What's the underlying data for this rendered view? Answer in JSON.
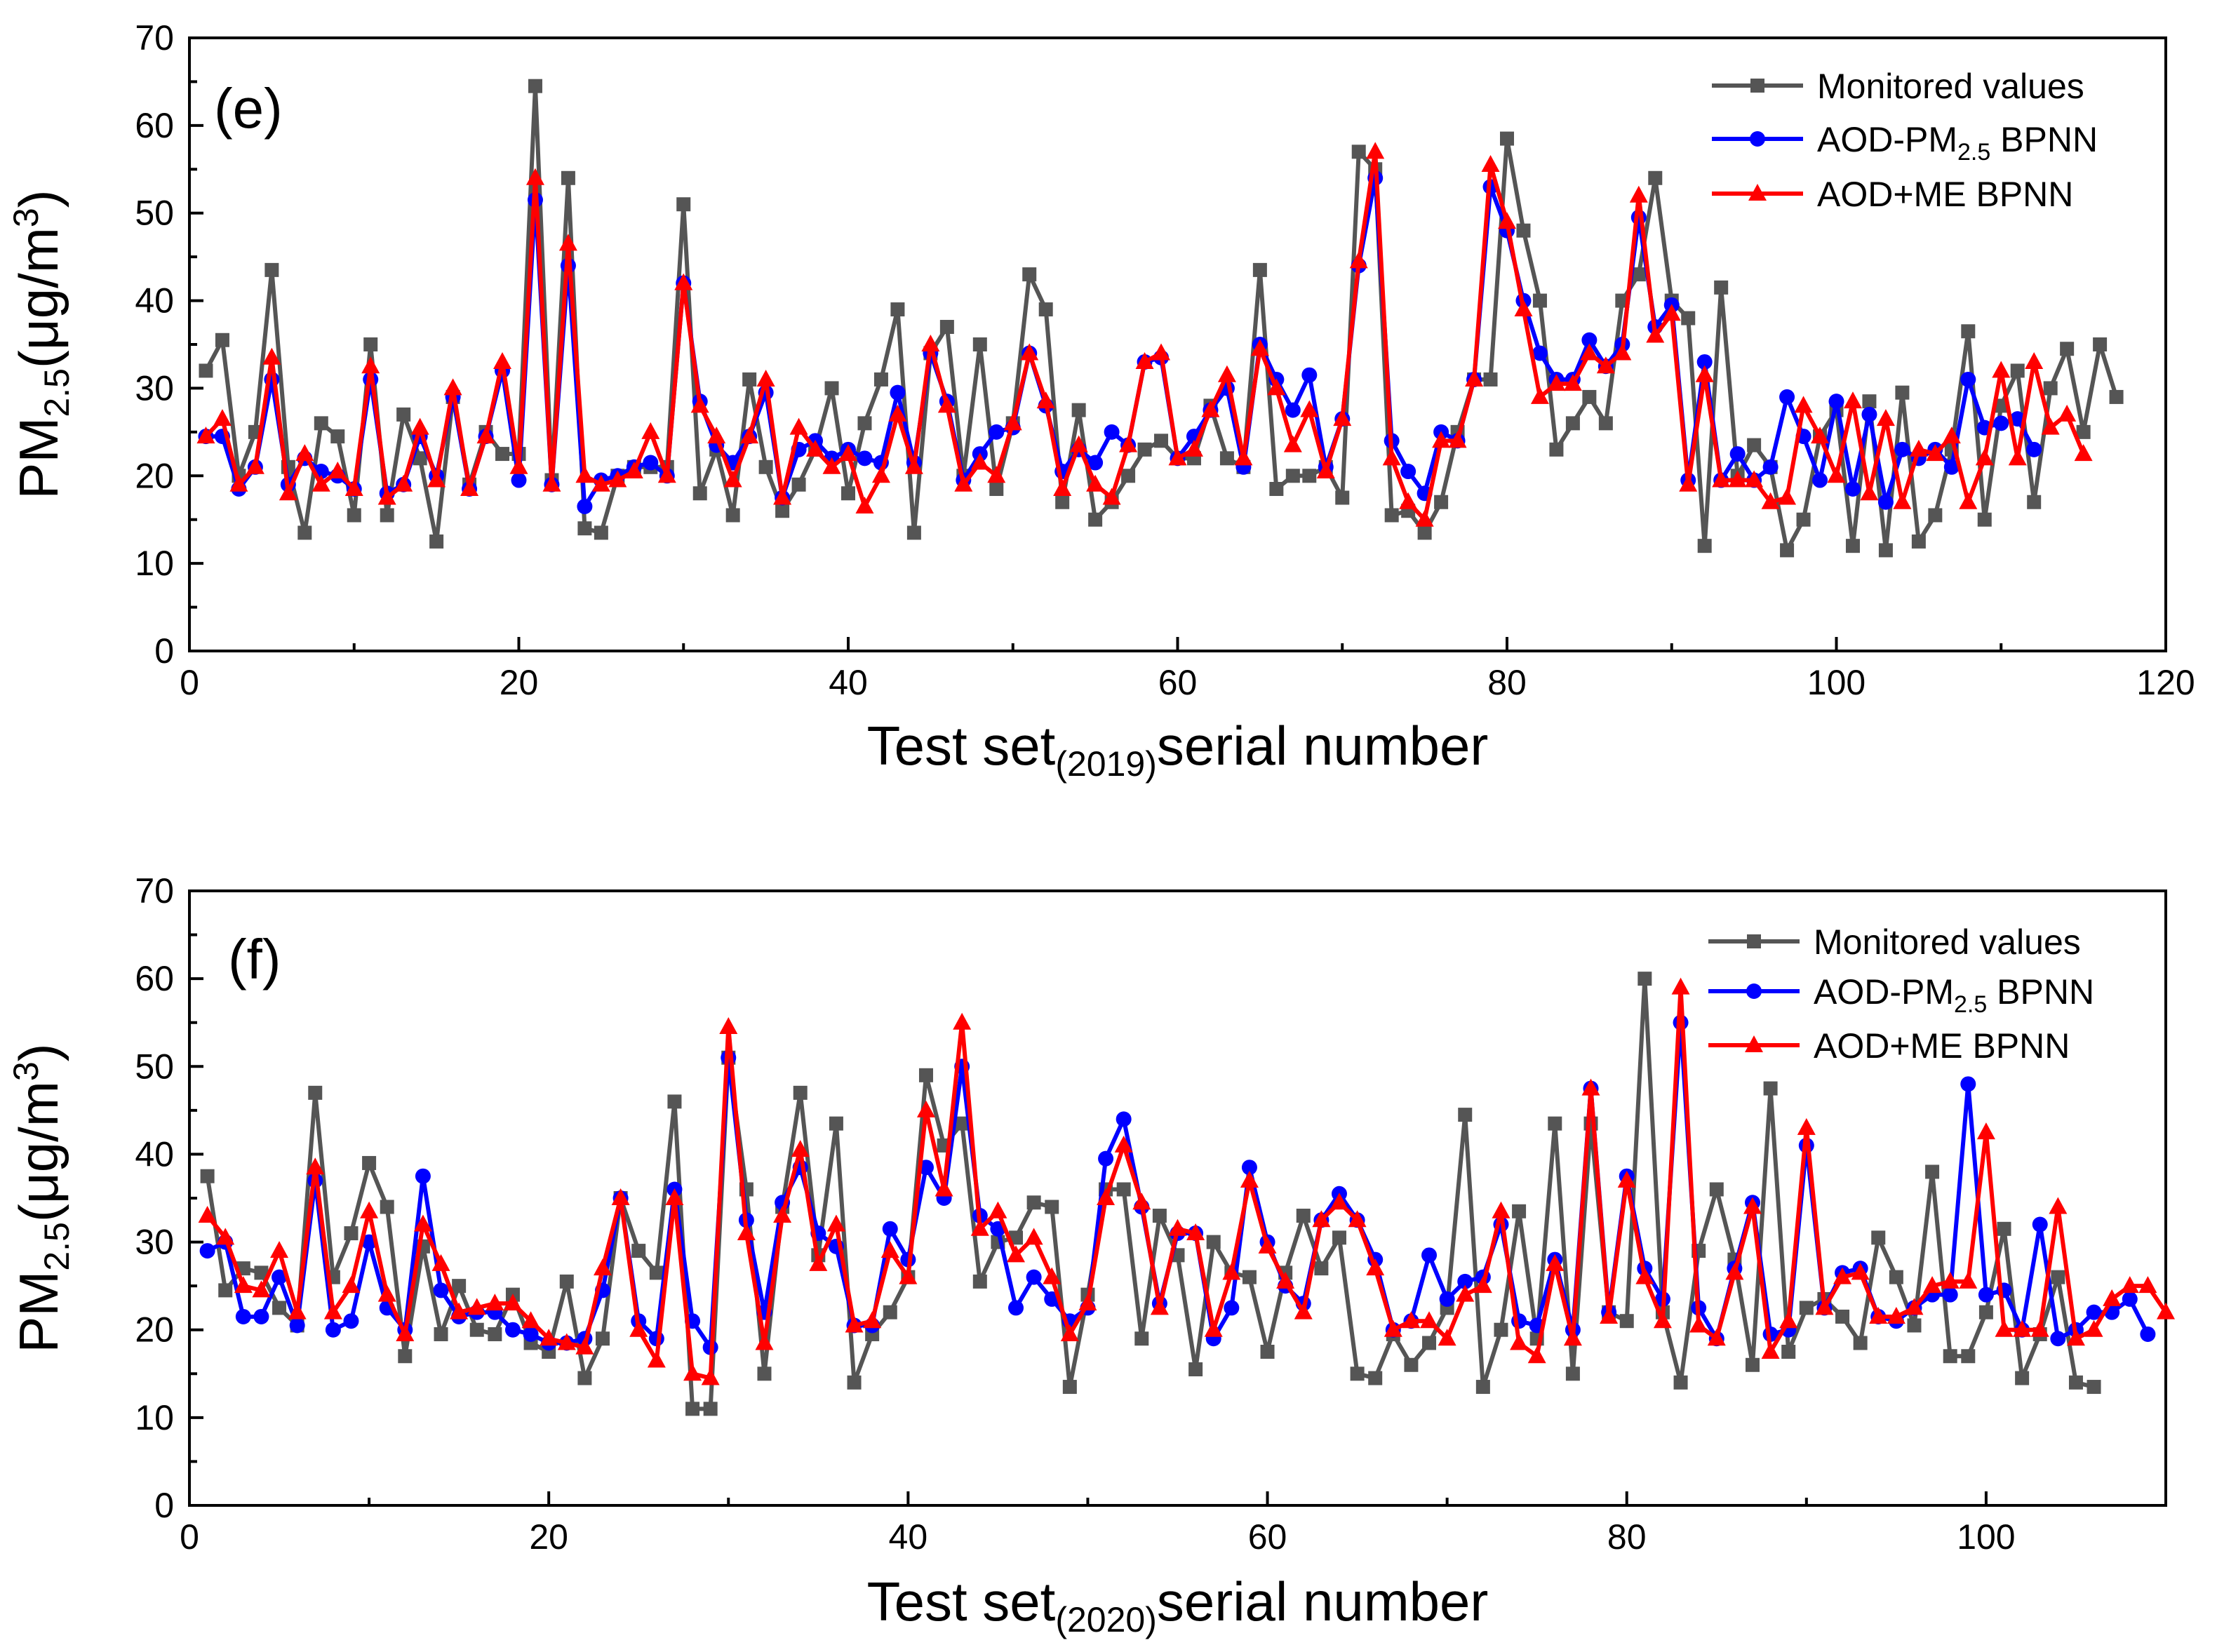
{
  "chart_data": [
    {
      "type": "line",
      "panel_label": "(e)",
      "xlabel": {
        "main": "Test set",
        "sub": "(2019)",
        "rest": "serial number"
      },
      "ylabel": {
        "pm": "PM",
        "pm_sub": "2.5",
        "unit": "(μg/m",
        "unit_sup": "3",
        "close": ")"
      },
      "xlim": [
        0,
        120
      ],
      "ylim": [
        0,
        70
      ],
      "xticks": [
        0,
        20,
        40,
        60,
        80,
        100,
        120
      ],
      "yticks": [
        0,
        10,
        20,
        30,
        40,
        50,
        60,
        70
      ],
      "legend_position": "top-right",
      "series": [
        {
          "name": "Monitored values",
          "legend": {
            "pre": "Monitored values",
            "sub": "",
            "post": ""
          },
          "color": "#555555",
          "marker": "square",
          "values": [
            32,
            35.5,
            20,
            25,
            43.5,
            21,
            13.5,
            26,
            24.5,
            15.5,
            35,
            15.5,
            27,
            22,
            12.5,
            29,
            19,
            25,
            22.5,
            22.5,
            64.5,
            19.5,
            54,
            14,
            13.5,
            20,
            21,
            21,
            21,
            51,
            18,
            23,
            15.5,
            31,
            21,
            16,
            19,
            23,
            30,
            18,
            26,
            31,
            39,
            13.5,
            34,
            37,
            20,
            35,
            18.5,
            26,
            43,
            39,
            17,
            27.5,
            15,
            17,
            20,
            23,
            24,
            22,
            22,
            28,
            22,
            21,
            43.5,
            18.5,
            20,
            20,
            21,
            17.5,
            57,
            55,
            15.5,
            16,
            13.5,
            17,
            25,
            31,
            31,
            58.5,
            48,
            40,
            23,
            26,
            29,
            26,
            40,
            43,
            54,
            40,
            38,
            12,
            41.5,
            20,
            23.5,
            21,
            11.5,
            15,
            24.5,
            27.5,
            12,
            28.5,
            11.5,
            29.5,
            12.5,
            15.5,
            23,
            36.5,
            15,
            28,
            32,
            17,
            30,
            34.5,
            25,
            35,
            29
          ]
        },
        {
          "name": "AOD-PM2.5 BPNN",
          "legend": {
            "pre": "AOD-PM",
            "sub": "2.5",
            "post": " BPNN"
          },
          "color": "#0000FF",
          "marker": "circle",
          "values": [
            24.5,
            24.5,
            18.5,
            21,
            31,
            19,
            22,
            20.5,
            20,
            18.5,
            31,
            18,
            19,
            24.5,
            20,
            29,
            18.5,
            24.5,
            32,
            19.5,
            51.5,
            19,
            44,
            16.5,
            19.5,
            20,
            21,
            21.5,
            20,
            42,
            28.5,
            23.5,
            21.5,
            24.5,
            29.5,
            17.5,
            23,
            24,
            22,
            23,
            22,
            21.5,
            29.5,
            21.5,
            34,
            28.5,
            19.5,
            22.5,
            25,
            25.5,
            34,
            28,
            20.5,
            23,
            21.5,
            25,
            23.5,
            33,
            33.5,
            22,
            24.5,
            27.5,
            30,
            21,
            35,
            31,
            27.5,
            31.5,
            21,
            26.5,
            44,
            54,
            24,
            20.5,
            18,
            25,
            24,
            31,
            53,
            48,
            40,
            34,
            31,
            31,
            35.5,
            32.5,
            35,
            49.5,
            37,
            39.5,
            19.5,
            33,
            19.5,
            22.5,
            19.5,
            21,
            29,
            24.5,
            19.5,
            28.5,
            18.5,
            27,
            17,
            23,
            22,
            23,
            21,
            31,
            25.5,
            26,
            26.5,
            23
          ]
        },
        {
          "name": "AOD+ME BPNN",
          "legend": {
            "pre": "AOD+ME BPNN",
            "sub": "",
            "post": ""
          },
          "color": "#FF0000",
          "marker": "triangle",
          "values": [
            24.5,
            26.5,
            19,
            21,
            33.5,
            18,
            22.5,
            19,
            20.5,
            18.5,
            32.5,
            17.5,
            19,
            25.5,
            19.5,
            30,
            18.5,
            24.5,
            33,
            21,
            54,
            19,
            46.5,
            20,
            19,
            19.5,
            20.5,
            25,
            20,
            42,
            28,
            24.5,
            19.5,
            24.5,
            31,
            17.5,
            25.5,
            23,
            21,
            22.5,
            16.5,
            20,
            27,
            21,
            35,
            28,
            19,
            21.5,
            20,
            26,
            34,
            28.5,
            18.5,
            23.5,
            19,
            17.5,
            23.5,
            33,
            34,
            22,
            23,
            27.5,
            31.5,
            22,
            34.5,
            30,
            23.5,
            27.5,
            20.5,
            26.5,
            44.5,
            57,
            22,
            17,
            15,
            24,
            24,
            31,
            55.5,
            49,
            39,
            29,
            30.5,
            30.5,
            34,
            32.5,
            34,
            52,
            36,
            38.5,
            19,
            31.5,
            19.5,
            19.5,
            19.5,
            17,
            17.5,
            28,
            24.5,
            20,
            28.5,
            18,
            26.5,
            17,
            23,
            22.5,
            24.5,
            17,
            22,
            32,
            22,
            33,
            25.5,
            27,
            22.5
          ]
        }
      ]
    },
    {
      "type": "line",
      "panel_label": "(f)",
      "xlabel": {
        "main": "Test set",
        "sub": "(2020)",
        "rest": "serial number"
      },
      "ylabel": {
        "pm": "PM",
        "pm_sub": "2.5",
        "unit": "(μg/m",
        "unit_sup": "3",
        "close": ")"
      },
      "xlim": [
        0,
        110
      ],
      "ylim": [
        0,
        70
      ],
      "xticks": [
        0,
        20,
        40,
        60,
        80,
        100
      ],
      "yticks": [
        0,
        10,
        20,
        30,
        40,
        50,
        60,
        70
      ],
      "legend_position": "top-right",
      "series": [
        {
          "name": "Monitored values",
          "legend": {
            "pre": "Monitored values",
            "sub": "",
            "post": ""
          },
          "color": "#555555",
          "marker": "square",
          "values": [
            37.5,
            24.5,
            27,
            26.5,
            22.5,
            20.5,
            47,
            26,
            31,
            39,
            34,
            17,
            29.5,
            19.5,
            25,
            20,
            19.5,
            24,
            18.5,
            17.5,
            25.5,
            14.5,
            19,
            35,
            29,
            26.5,
            46,
            11,
            11,
            51,
            36,
            15,
            34,
            47,
            28.5,
            43.5,
            14,
            19.5,
            22,
            26,
            49,
            41,
            43.5,
            25.5,
            30,
            30.5,
            34.5,
            34,
            13.5,
            24,
            36,
            36,
            19,
            33,
            28.5,
            15.5,
            30,
            26.5,
            26,
            17.5,
            26.5,
            33,
            27,
            30.5,
            15,
            14.5,
            19.5,
            16,
            18.5,
            22.5,
            44.5,
            13.5,
            20,
            33.5,
            19,
            43.5,
            15,
            43.5,
            22,
            21,
            60,
            22,
            14,
            29,
            36,
            28,
            16,
            47.5,
            17.5,
            22.5,
            23.5,
            21.5,
            18.5,
            30.5,
            26,
            20.5,
            38,
            17,
            17,
            22,
            31.5,
            14.5,
            19.5,
            26,
            14,
            13.5
          ]
        },
        {
          "name": "AOD-PM2.5 BPNN",
          "legend": {
            "pre": "AOD-PM",
            "sub": "2.5",
            "post": " BPNN"
          },
          "color": "#0000FF",
          "marker": "circle",
          "values": [
            29,
            30,
            21.5,
            21.5,
            26,
            20.5,
            37,
            20,
            21,
            30,
            22.5,
            20,
            37.5,
            24.5,
            21.5,
            22,
            22,
            20,
            19.5,
            18.5,
            18.5,
            19,
            24.5,
            35,
            21,
            19,
            36,
            21,
            18,
            51,
            32.5,
            22,
            34.5,
            38.5,
            31,
            29.5,
            20.5,
            20.5,
            31.5,
            28,
            38.5,
            35,
            50,
            33,
            31.5,
            22.5,
            26,
            23.5,
            21,
            22.5,
            39.5,
            44,
            34,
            23,
            31,
            31,
            19,
            22.5,
            38.5,
            30,
            25,
            23,
            32.5,
            35.5,
            32.5,
            28,
            20,
            21,
            28.5,
            23.5,
            25.5,
            26,
            32,
            21,
            20.5,
            28,
            20,
            47.5,
            22,
            37.5,
            27,
            23.5,
            55,
            22.5,
            19,
            27,
            34.5,
            19.5,
            20,
            41,
            22.5,
            26.5,
            27,
            21.5,
            21,
            22.5,
            24,
            24,
            48,
            24,
            24.5,
            20,
            32,
            19,
            20,
            22,
            22,
            23.5,
            19.5
          ]
        },
        {
          "name": "AOD+ME BPNN",
          "legend": {
            "pre": "AOD+ME BPNN",
            "sub": "",
            "post": ""
          },
          "color": "#FF0000",
          "marker": "triangle",
          "values": [
            33,
            30.5,
            25,
            24.5,
            29,
            22,
            38.5,
            22,
            25,
            33.5,
            24,
            19.5,
            32,
            27.5,
            22,
            22.5,
            23,
            23,
            21,
            19,
            18.5,
            18,
            27,
            35,
            20,
            16.5,
            35,
            15,
            14.5,
            54.5,
            31,
            18.5,
            33,
            40.5,
            27.5,
            32,
            20.5,
            21,
            29,
            26,
            45,
            36,
            55,
            31.5,
            33.5,
            28.5,
            30.5,
            26,
            19.5,
            23,
            35,
            41,
            34.5,
            22.5,
            31.5,
            31,
            20,
            26.5,
            37,
            29.5,
            25.5,
            22,
            32.5,
            34.5,
            32.5,
            27,
            20,
            21,
            21,
            19,
            24,
            25,
            33.5,
            18.5,
            17,
            27.5,
            19,
            47.5,
            21.5,
            37,
            26,
            21,
            59,
            20.5,
            19,
            26.5,
            34,
            17.5,
            21,
            43,
            22.5,
            26,
            26.5,
            21.5,
            21.5,
            22.5,
            25,
            25.5,
            25.5,
            42.5,
            20,
            20,
            20,
            34,
            19,
            20,
            23.5,
            25,
            25,
            22
          ]
        }
      ]
    }
  ]
}
